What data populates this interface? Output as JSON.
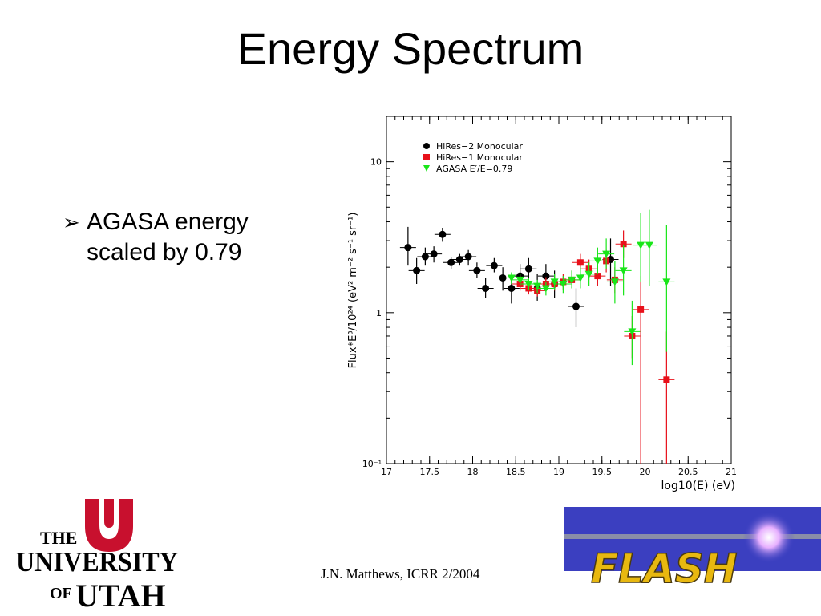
{
  "slide": {
    "title": "Energy Spectrum",
    "bullet_marker": "➢",
    "bullet": "AGASA energy scaled by 0.79",
    "footer": "J.N. Matthews, ICRR 2/2004"
  },
  "logos": {
    "university_top": "THE",
    "university_mid": "UNIVERSITY",
    "university_of": "OF",
    "university_bottom": "UTAH",
    "flash": "FLASH",
    "university_color": "#c8102e",
    "flash_bg": "#3b3fc0",
    "flash_text": "#e8b810"
  },
  "chart_data": {
    "type": "scatter",
    "title": "",
    "xlabel": "log10(E) (eV)",
    "ylabel": "Flux*E³/10²⁴ (eV² m⁻² s⁻¹ sr⁻¹)",
    "xlim": [
      17,
      21
    ],
    "ylim": [
      0.1,
      20
    ],
    "yscale": "log",
    "x_ticks": [
      "17",
      "17.5",
      "18",
      "18.5",
      "19",
      "19.5",
      "20",
      "20.5",
      "21"
    ],
    "y_ticks": [
      "10⁻¹",
      "1",
      "10"
    ],
    "legend_position": "top-left",
    "series": [
      {
        "name": "HiRes−2 Monocular",
        "marker": "circle",
        "color": "#000000",
        "points": [
          {
            "x": 17.25,
            "y": 2.7,
            "lo": 2.05,
            "hi": 3.7
          },
          {
            "x": 17.35,
            "y": 1.9,
            "lo": 1.55,
            "hi": 2.3
          },
          {
            "x": 17.45,
            "y": 2.35,
            "lo": 2.05,
            "hi": 2.7
          },
          {
            "x": 17.55,
            "y": 2.45,
            "lo": 2.15,
            "hi": 2.75
          },
          {
            "x": 17.65,
            "y": 3.3,
            "lo": 2.95,
            "hi": 3.65
          },
          {
            "x": 17.75,
            "y": 2.15,
            "lo": 1.95,
            "hi": 2.35
          },
          {
            "x": 17.85,
            "y": 2.25,
            "lo": 2.05,
            "hi": 2.45
          },
          {
            "x": 17.95,
            "y": 2.35,
            "lo": 2.05,
            "hi": 2.6
          },
          {
            "x": 18.05,
            "y": 1.9,
            "lo": 1.7,
            "hi": 2.15
          },
          {
            "x": 18.15,
            "y": 1.45,
            "lo": 1.25,
            "hi": 1.7
          },
          {
            "x": 18.25,
            "y": 2.05,
            "lo": 1.85,
            "hi": 2.3
          },
          {
            "x": 18.35,
            "y": 1.7,
            "lo": 1.4,
            "hi": 2.0
          },
          {
            "x": 18.45,
            "y": 1.45,
            "lo": 1.15,
            "hi": 1.75
          },
          {
            "x": 18.55,
            "y": 1.75,
            "lo": 1.45,
            "hi": 2.1
          },
          {
            "x": 18.65,
            "y": 1.95,
            "lo": 1.65,
            "hi": 2.3
          },
          {
            "x": 18.75,
            "y": 1.45,
            "lo": 1.2,
            "hi": 1.8
          },
          {
            "x": 18.85,
            "y": 1.75,
            "lo": 1.4,
            "hi": 2.1
          },
          {
            "x": 18.95,
            "y": 1.55,
            "lo": 1.25,
            "hi": 1.9
          },
          {
            "x": 19.2,
            "y": 1.1,
            "lo": 0.8,
            "hi": 1.45
          },
          {
            "x": 19.6,
            "y": 2.25,
            "lo": 1.5,
            "hi": 3.1
          }
        ]
      },
      {
        "name": "HiRes−1 Monocular",
        "marker": "square",
        "color": "#e8101a",
        "points": [
          {
            "x": 18.55,
            "y": 1.55,
            "lo": 1.4,
            "hi": 1.75
          },
          {
            "x": 18.65,
            "y": 1.45,
            "lo": 1.32,
            "hi": 1.6
          },
          {
            "x": 18.75,
            "y": 1.4,
            "lo": 1.28,
            "hi": 1.55
          },
          {
            "x": 18.85,
            "y": 1.55,
            "lo": 1.4,
            "hi": 1.72
          },
          {
            "x": 18.95,
            "y": 1.55,
            "lo": 1.4,
            "hi": 1.72
          },
          {
            "x": 19.05,
            "y": 1.6,
            "lo": 1.42,
            "hi": 1.8
          },
          {
            "x": 19.15,
            "y": 1.65,
            "lo": 1.45,
            "hi": 1.9
          },
          {
            "x": 19.25,
            "y": 2.15,
            "lo": 1.9,
            "hi": 2.45
          },
          {
            "x": 19.35,
            "y": 1.95,
            "lo": 1.7,
            "hi": 2.25
          },
          {
            "x": 19.45,
            "y": 1.75,
            "lo": 1.5,
            "hi": 2.05
          },
          {
            "x": 19.55,
            "y": 2.2,
            "lo": 1.85,
            "hi": 2.6
          },
          {
            "x": 19.65,
            "y": 1.65,
            "lo": 1.35,
            "hi": 2.0
          },
          {
            "x": 19.75,
            "y": 2.85,
            "lo": 2.3,
            "hi": 3.5
          },
          {
            "x": 19.85,
            "y": 0.7,
            "lo": 0.5,
            "hi": 0.95
          },
          {
            "x": 19.95,
            "y": 1.05,
            "lo": 0.1,
            "hi": 1.75
          },
          {
            "x": 20.25,
            "y": 0.36,
            "lo": 0.1,
            "hi": 0.75
          }
        ]
      },
      {
        "name": "AGASA E′/E=0.79",
        "marker": "triangle-down",
        "color": "#19e619",
        "points": [
          {
            "x": 18.45,
            "y": 1.7,
            "lo": 1.55,
            "hi": 1.85
          },
          {
            "x": 18.55,
            "y": 1.65,
            "lo": 1.5,
            "hi": 1.8
          },
          {
            "x": 18.65,
            "y": 1.55,
            "lo": 1.42,
            "hi": 1.7
          },
          {
            "x": 18.75,
            "y": 1.5,
            "lo": 1.35,
            "hi": 1.65
          },
          {
            "x": 18.85,
            "y": 1.45,
            "lo": 1.3,
            "hi": 1.6
          },
          {
            "x": 18.95,
            "y": 1.6,
            "lo": 1.42,
            "hi": 1.8
          },
          {
            "x": 19.05,
            "y": 1.55,
            "lo": 1.35,
            "hi": 1.75
          },
          {
            "x": 19.15,
            "y": 1.65,
            "lo": 1.45,
            "hi": 1.9
          },
          {
            "x": 19.25,
            "y": 1.7,
            "lo": 1.45,
            "hi": 2.0
          },
          {
            "x": 19.35,
            "y": 1.8,
            "lo": 1.5,
            "hi": 2.15
          },
          {
            "x": 19.45,
            "y": 2.2,
            "lo": 1.8,
            "hi": 2.7
          },
          {
            "x": 19.55,
            "y": 2.45,
            "lo": 1.95,
            "hi": 3.1
          },
          {
            "x": 19.65,
            "y": 1.6,
            "lo": 1.15,
            "hi": 2.2
          },
          {
            "x": 19.75,
            "y": 1.9,
            "lo": 1.3,
            "hi": 2.8
          },
          {
            "x": 19.85,
            "y": 0.75,
            "lo": 0.45,
            "hi": 1.2
          },
          {
            "x": 19.95,
            "y": 2.8,
            "lo": 1.6,
            "hi": 4.6
          },
          {
            "x": 20.05,
            "y": 2.8,
            "lo": 1.5,
            "hi": 4.8
          },
          {
            "x": 20.25,
            "y": 1.6,
            "lo": 0.55,
            "hi": 3.8
          }
        ]
      }
    ]
  }
}
